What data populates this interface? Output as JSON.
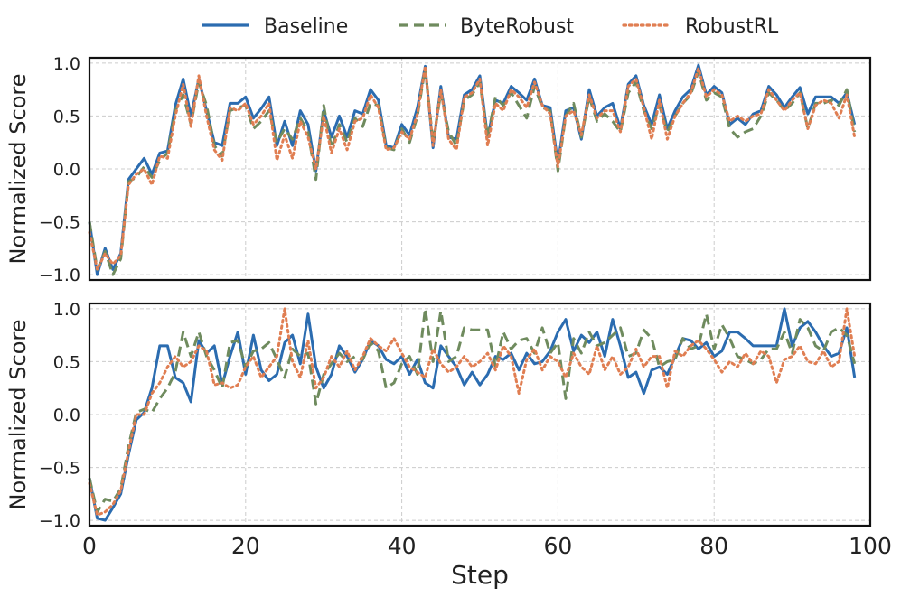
{
  "chart_data": [
    {
      "type": "line",
      "panel": "top",
      "ylabel": "Normalized Score",
      "xlabel": "",
      "xlim": [
        0,
        100
      ],
      "ylim": [
        -1.05,
        1.05
      ],
      "yticks": [
        "−1.0",
        "−0.5",
        "0.0",
        "0.5",
        "1.0"
      ],
      "ytick_values": [
        -1.0,
        -0.5,
        0.0,
        0.5,
        1.0
      ],
      "xtick_values": [
        0,
        20,
        40,
        60,
        80,
        100
      ],
      "grid": true,
      "series": [
        {
          "name": "Baseline",
          "color": "#2b6cb0",
          "style": "solid",
          "values": [
            -0.5,
            -1.0,
            -0.75,
            -0.95,
            -0.8,
            -0.1,
            -0.0,
            0.1,
            -0.05,
            0.15,
            0.17,
            0.6,
            0.85,
            0.5,
            0.85,
            0.55,
            0.25,
            0.22,
            0.62,
            0.62,
            0.68,
            0.48,
            0.57,
            0.68,
            0.22,
            0.45,
            0.22,
            0.55,
            0.42,
            -0.02,
            0.55,
            0.3,
            0.5,
            0.3,
            0.55,
            0.52,
            0.75,
            0.65,
            0.22,
            0.2,
            0.42,
            0.32,
            0.58,
            0.97,
            0.2,
            0.78,
            0.3,
            0.28,
            0.7,
            0.75,
            0.88,
            0.3,
            0.65,
            0.62,
            0.78,
            0.72,
            0.65,
            0.85,
            0.6,
            0.58,
            0.05,
            0.55,
            0.58,
            0.28,
            0.75,
            0.5,
            0.58,
            0.62,
            0.38,
            0.8,
            0.88,
            0.6,
            0.42,
            0.7,
            0.38,
            0.55,
            0.68,
            0.75,
            0.98,
            0.7,
            0.78,
            0.72,
            0.42,
            0.48,
            0.42,
            0.52,
            0.55,
            0.78,
            0.7,
            0.58,
            0.68,
            0.77,
            0.52,
            0.68,
            0.68,
            0.68,
            0.62,
            0.72,
            0.42
          ]
        },
        {
          "name": "ByteRobust",
          "color": "#6f8b5e",
          "style": "dashed",
          "values": [
            -0.5,
            -0.95,
            -0.78,
            -1.0,
            -0.85,
            -0.12,
            -0.08,
            0.02,
            -0.08,
            0.08,
            0.15,
            0.55,
            0.7,
            0.42,
            0.82,
            0.6,
            0.22,
            0.12,
            0.55,
            0.58,
            0.6,
            0.38,
            0.45,
            0.55,
            0.25,
            0.38,
            0.28,
            0.48,
            0.35,
            -0.1,
            0.6,
            0.2,
            0.42,
            0.25,
            0.48,
            0.4,
            0.62,
            0.6,
            0.2,
            0.18,
            0.38,
            0.25,
            0.5,
            0.95,
            0.25,
            0.72,
            0.35,
            0.22,
            0.65,
            0.7,
            0.82,
            0.3,
            0.68,
            0.6,
            0.72,
            0.6,
            0.48,
            0.78,
            0.58,
            0.55,
            -0.02,
            0.5,
            0.62,
            0.3,
            0.68,
            0.45,
            0.52,
            0.45,
            0.35,
            0.72,
            0.82,
            0.55,
            0.38,
            0.6,
            0.35,
            0.5,
            0.62,
            0.7,
            0.92,
            0.65,
            0.72,
            0.68,
            0.38,
            0.3,
            0.35,
            0.38,
            0.5,
            0.72,
            0.65,
            0.55,
            0.62,
            0.72,
            0.38,
            0.62,
            0.62,
            0.65,
            0.6,
            0.75,
            0.35
          ]
        },
        {
          "name": "RobustRL",
          "color": "#e07e52",
          "style": "dotted",
          "values": [
            -0.6,
            -0.95,
            -0.8,
            -0.9,
            -0.82,
            -0.15,
            -0.05,
            0.0,
            -0.15,
            0.12,
            0.1,
            0.5,
            0.8,
            0.4,
            0.88,
            0.5,
            0.18,
            0.08,
            0.58,
            0.55,
            0.62,
            0.42,
            0.5,
            0.62,
            0.08,
            0.32,
            0.1,
            0.45,
            0.3,
            0.0,
            0.5,
            0.15,
            0.38,
            0.18,
            0.45,
            0.48,
            0.7,
            0.58,
            0.18,
            0.2,
            0.35,
            0.28,
            0.52,
            0.97,
            0.22,
            0.75,
            0.28,
            0.18,
            0.68,
            0.72,
            0.85,
            0.22,
            0.62,
            0.55,
            0.75,
            0.68,
            0.58,
            0.82,
            0.6,
            0.52,
            0.02,
            0.5,
            0.55,
            0.32,
            0.7,
            0.48,
            0.55,
            0.55,
            0.35,
            0.78,
            0.85,
            0.58,
            0.28,
            0.65,
            0.28,
            0.5,
            0.62,
            0.72,
            0.95,
            0.68,
            0.75,
            0.7,
            0.45,
            0.5,
            0.45,
            0.5,
            0.52,
            0.75,
            0.65,
            0.55,
            0.65,
            0.72,
            0.38,
            0.6,
            0.65,
            0.62,
            0.48,
            0.7,
            0.3
          ]
        }
      ]
    },
    {
      "type": "line",
      "panel": "bottom",
      "ylabel": "Normalized Score",
      "xlabel": "Step",
      "xlim": [
        0,
        100
      ],
      "ylim": [
        -1.05,
        1.05
      ],
      "yticks": [
        "−1.0",
        "−0.5",
        "0.0",
        "0.5",
        "1.0"
      ],
      "ytick_values": [
        -1.0,
        -0.5,
        0.0,
        0.5,
        1.0
      ],
      "xticks": [
        "0",
        "20",
        "40",
        "60",
        "80",
        "100"
      ],
      "xtick_values": [
        0,
        20,
        40,
        60,
        80,
        100
      ],
      "grid": true,
      "series": [
        {
          "name": "Baseline",
          "color": "#2b6cb0",
          "style": "solid",
          "values": [
            -0.6,
            -0.98,
            -1.0,
            -0.88,
            -0.75,
            -0.38,
            -0.05,
            0.02,
            0.25,
            0.65,
            0.65,
            0.35,
            0.3,
            0.12,
            0.7,
            0.58,
            0.65,
            0.28,
            0.55,
            0.78,
            0.38,
            0.75,
            0.42,
            0.32,
            0.38,
            0.68,
            0.75,
            0.48,
            0.95,
            0.45,
            0.25,
            0.38,
            0.65,
            0.55,
            0.4,
            0.52,
            0.7,
            0.65,
            0.52,
            0.48,
            0.55,
            0.38,
            0.52,
            0.3,
            0.25,
            0.65,
            0.55,
            0.45,
            0.28,
            0.4,
            0.28,
            0.38,
            0.55,
            0.52,
            0.58,
            0.42,
            0.58,
            0.48,
            0.5,
            0.6,
            0.78,
            0.9,
            0.6,
            0.75,
            0.68,
            0.78,
            0.55,
            0.9,
            0.65,
            0.35,
            0.4,
            0.2,
            0.42,
            0.45,
            0.38,
            0.55,
            0.72,
            0.7,
            0.62,
            0.68,
            0.55,
            0.6,
            0.78,
            0.78,
            0.72,
            0.65,
            0.65,
            0.65,
            0.65,
            1.0,
            0.65,
            0.82,
            0.88,
            0.78,
            0.65,
            0.55,
            0.58,
            0.82,
            0.35
          ]
        },
        {
          "name": "ByteRobust",
          "color": "#6f8b5e",
          "style": "dashed",
          "values": [
            -0.6,
            -0.92,
            -0.8,
            -0.82,
            -0.7,
            -0.3,
            0.02,
            0.05,
            0.02,
            0.15,
            0.25,
            0.4,
            0.78,
            0.55,
            0.78,
            0.55,
            0.42,
            0.25,
            0.68,
            0.7,
            0.45,
            0.6,
            0.62,
            0.68,
            0.52,
            0.35,
            0.62,
            0.55,
            0.58,
            0.1,
            0.38,
            0.48,
            0.58,
            0.5,
            0.55,
            0.52,
            0.68,
            0.6,
            0.25,
            0.3,
            0.48,
            0.55,
            0.38,
            1.0,
            0.5,
            0.98,
            0.5,
            0.55,
            0.82,
            0.8,
            0.8,
            0.8,
            0.45,
            0.78,
            0.62,
            0.7,
            0.72,
            0.58,
            0.82,
            0.58,
            0.68,
            0.15,
            0.72,
            0.58,
            0.78,
            0.65,
            0.68,
            0.75,
            0.82,
            0.55,
            0.58,
            0.8,
            0.72,
            0.45,
            0.5,
            0.52,
            0.72,
            0.62,
            0.65,
            0.95,
            0.62,
            0.85,
            0.72,
            0.55,
            0.52,
            0.48,
            0.52,
            0.62,
            0.62,
            0.78,
            0.58,
            0.9,
            0.82,
            0.65,
            0.6,
            0.78,
            0.82,
            0.75,
            0.48
          ]
        },
        {
          "name": "RobustRL",
          "color": "#e07e52",
          "style": "dotted",
          "values": [
            -0.65,
            -0.95,
            -0.92,
            -0.85,
            -0.72,
            -0.35,
            0.0,
            0.0,
            0.2,
            0.3,
            0.45,
            0.55,
            0.45,
            0.5,
            0.65,
            0.6,
            0.28,
            0.3,
            0.25,
            0.28,
            0.45,
            0.55,
            0.35,
            0.45,
            0.55,
            1.0,
            0.5,
            0.35,
            0.7,
            0.25,
            0.35,
            0.55,
            0.45,
            0.6,
            0.42,
            0.55,
            0.72,
            0.65,
            0.6,
            0.72,
            0.58,
            0.45,
            0.4,
            0.35,
            0.62,
            0.48,
            0.4,
            0.45,
            0.55,
            0.45,
            0.5,
            0.58,
            0.42,
            0.65,
            0.55,
            0.2,
            0.52,
            0.62,
            0.42,
            0.55,
            0.5,
            0.35,
            0.58,
            0.45,
            0.38,
            0.65,
            0.42,
            0.55,
            0.38,
            0.45,
            0.62,
            0.45,
            0.55,
            0.55,
            0.25,
            0.6,
            0.55,
            0.65,
            0.7,
            0.62,
            0.52,
            0.4,
            0.5,
            0.45,
            0.58,
            0.48,
            0.6,
            0.55,
            0.3,
            0.52,
            0.55,
            0.65,
            0.5,
            0.48,
            0.6,
            0.45,
            0.5,
            1.0,
            0.55
          ]
        }
      ]
    }
  ]
}
